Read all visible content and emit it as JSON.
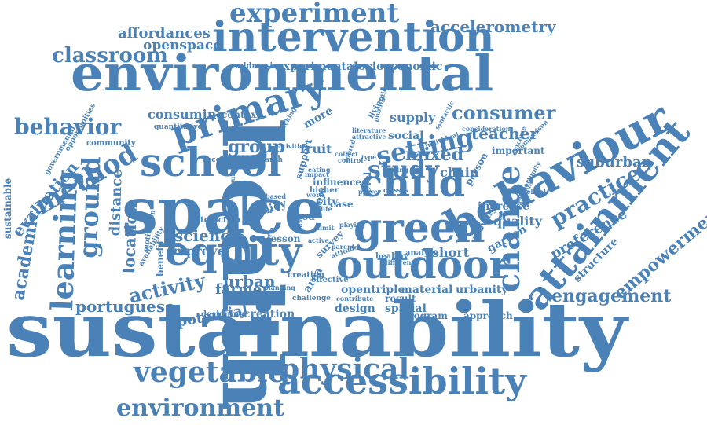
{
  "text_color": "#4a82b8",
  "words": [
    {
      "id": "sustainability",
      "text": "sustainability"
    },
    {
      "id": "environmental",
      "text": "environmental"
    },
    {
      "id": "health",
      "text": "health"
    },
    {
      "id": "space",
      "text": "space"
    },
    {
      "id": "behaviour",
      "text": "behaviour"
    },
    {
      "id": "intervention",
      "text": "intervention"
    },
    {
      "id": "experiment",
      "text": "experiment"
    },
    {
      "id": "school",
      "text": "school"
    },
    {
      "id": "primary",
      "text": "primary"
    },
    {
      "id": "green",
      "text": "green"
    },
    {
      "id": "outdoor",
      "text": "outdoor"
    },
    {
      "id": "attainment",
      "text": "attainment"
    },
    {
      "id": "accessibility",
      "text": "accessibility"
    },
    {
      "id": "vegetable",
      "text": "vegetable"
    },
    {
      "id": "physical",
      "text": "physical"
    },
    {
      "id": "equity",
      "text": "equity"
    },
    {
      "id": "child",
      "text": "child"
    },
    {
      "id": "change",
      "text": "change"
    },
    {
      "id": "learning",
      "text": "learning"
    },
    {
      "id": "method",
      "text": "method"
    },
    {
      "id": "environment",
      "text": "environment"
    },
    {
      "id": "classroom",
      "text": "classroom"
    },
    {
      "id": "behavior",
      "text": "behavior"
    },
    {
      "id": "ground",
      "text": "ground"
    },
    {
      "id": "consumer",
      "text": "consumer"
    },
    {
      "id": "setting",
      "text": "setting"
    },
    {
      "id": "study",
      "text": "study"
    },
    {
      "id": "academic",
      "text": "academic"
    },
    {
      "id": "engagement",
      "text": "engagement"
    },
    {
      "id": "empowerment",
      "text": "empowerment"
    },
    {
      "id": "practice",
      "text": "practice"
    },
    {
      "id": "preference",
      "text": "preference"
    },
    {
      "id": "accelerometry",
      "text": "accelerometry"
    },
    {
      "id": "affordances",
      "text": "affordances"
    },
    {
      "id": "openspace",
      "text": "openspace"
    },
    {
      "id": "evaluation",
      "text": "evaluation"
    },
    {
      "id": "activity",
      "text": "activity"
    },
    {
      "id": "science",
      "text": "science"
    },
    {
      "id": "urban",
      "text": "urban"
    },
    {
      "id": "group",
      "text": "group"
    },
    {
      "id": "mixed",
      "text": "mixed"
    },
    {
      "id": "teacher",
      "text": "teacher"
    },
    {
      "id": "suburban",
      "text": "suburban"
    },
    {
      "id": "portuguese",
      "text": "portuguese"
    },
    {
      "id": "distance",
      "text": "distance"
    },
    {
      "id": "location",
      "text": "location"
    },
    {
      "id": "farmer",
      "text": "farmer"
    },
    {
      "id": "potential",
      "text": "potential"
    },
    {
      "id": "creation",
      "text": "creation"
    },
    {
      "id": "consuming",
      "text": "consuming"
    },
    {
      "id": "supply",
      "text": "supply"
    },
    {
      "id": "social",
      "text": "social"
    },
    {
      "id": "chain",
      "text": "chain"
    },
    {
      "id": "quality",
      "text": "quality"
    },
    {
      "id": "increase",
      "text": "increase"
    },
    {
      "id": "garden",
      "text": "garden"
    },
    {
      "id": "short",
      "text": "short"
    },
    {
      "id": "structure",
      "text": "structure"
    },
    {
      "id": "improve",
      "text": "improve"
    },
    {
      "id": "fruit",
      "text": "fruit"
    },
    {
      "id": "more",
      "text": "more"
    },
    {
      "id": "experimental",
      "text": "experimental"
    },
    {
      "id": "socioeconomic",
      "text": "socioeconomic"
    },
    {
      "id": "addressing",
      "text": "addressing"
    },
    {
      "id": "context",
      "text": "context"
    },
    {
      "id": "sustainable",
      "text": "sustainable"
    },
    {
      "id": "benefit",
      "text": "benefit"
    },
    {
      "id": "design",
      "text": "design"
    },
    {
      "id": "spatial",
      "text": "spatial"
    },
    {
      "id": "program",
      "text": "program"
    },
    {
      "id": "approach",
      "text": "approach"
    },
    {
      "id": "material",
      "text": "material"
    },
    {
      "id": "urbanity",
      "text": "urbanity"
    },
    {
      "id": "opentriple",
      "text": "opentriple"
    },
    {
      "id": "result",
      "text": "result"
    },
    {
      "id": "area",
      "text": "area"
    },
    {
      "id": "city",
      "text": "city"
    },
    {
      "id": "case",
      "text": "case"
    },
    {
      "id": "level",
      "text": "level"
    },
    {
      "id": "influence",
      "text": "influence"
    },
    {
      "id": "moving",
      "text": "moving"
    },
    {
      "id": "person",
      "text": "person"
    },
    {
      "id": "important",
      "text": "important"
    },
    {
      "id": "lesson",
      "text": "lesson"
    },
    {
      "id": "policy",
      "text": "policy"
    },
    {
      "id": "good",
      "text": "good"
    },
    {
      "id": "effective",
      "text": "effective"
    },
    {
      "id": "creating",
      "text": "creating"
    },
    {
      "id": "interaction",
      "text": "interaction"
    },
    {
      "id": "designing",
      "text": "designing"
    },
    {
      "id": "challenge",
      "text": "challenge"
    },
    {
      "id": "community",
      "text": "community"
    },
    {
      "id": "quantitative",
      "text": "quantitative"
    },
    {
      "id": "opportunities",
      "text": "opportunities"
    },
    {
      "id": "governmental",
      "text": "governmental"
    },
    {
      "id": "motivation",
      "text": "motivation"
    },
    {
      "id": "availability",
      "text": "availability"
    },
    {
      "id": "accessible",
      "text": "accessible"
    },
    {
      "id": "research",
      "text": "research"
    },
    {
      "id": "activities",
      "text": "activities"
    },
    {
      "id": "tracking",
      "text": "tracking"
    },
    {
      "id": "attractive",
      "text": "attractive"
    },
    {
      "id": "literature",
      "text": "literature"
    },
    {
      "id": "collect",
      "text": "collect"
    },
    {
      "id": "control",
      "text": "control"
    },
    {
      "id": "support",
      "text": "support"
    },
    {
      "id": "higher",
      "text": "higher"
    },
    {
      "id": "eating",
      "text": "eating"
    },
    {
      "id": "impact",
      "text": "impact"
    },
    {
      "id": "based",
      "text": "based"
    },
    {
      "id": "inequity",
      "text": "inequity"
    },
    {
      "id": "better",
      "text": "better"
    },
    {
      "id": "view",
      "text": "view"
    },
    {
      "id": "analyse",
      "text": "analyse"
    },
    {
      "id": "healthy",
      "text": "healthy"
    },
    {
      "id": "different",
      "text": "different"
    },
    {
      "id": "classes",
      "text": "classes"
    },
    {
      "id": "parent",
      "text": "parent"
    },
    {
      "id": "survey",
      "text": "survey"
    },
    {
      "id": "attitude",
      "text": "attitude"
    },
    {
      "id": "contribute",
      "text": "contribute"
    },
    {
      "id": "syntactic",
      "text": "syntactic"
    },
    {
      "id": "consideration",
      "text": "consideration"
    },
    {
      "id": "comparison",
      "text": "comparison"
    },
    {
      "id": "individual",
      "text": "individual"
    },
    {
      "id": "finding",
      "text": "finding"
    },
    {
      "id": "living",
      "text": "living"
    },
    {
      "id": "publication",
      "text": "publication"
    },
    {
      "id": "opportunity",
      "text": "opportunity"
    },
    {
      "id": "school2",
      "text": "school"
    },
    {
      "id": "focus",
      "text": "focus"
    },
    {
      "id": "perform",
      "text": "perform"
    },
    {
      "id": "playing",
      "text": "playing"
    },
    {
      "id": "planning",
      "text": "planning"
    },
    {
      "id": "inbred",
      "text": "inbred"
    },
    {
      "id": "prove",
      "text": "prove"
    },
    {
      "id": "active",
      "text": "active"
    },
    {
      "id": "work",
      "text": "work"
    },
    {
      "id": "example",
      "text": "example"
    },
    {
      "id": "limit",
      "text": "limit"
    },
    {
      "id": "outcome",
      "text": "outcome"
    },
    {
      "id": "type",
      "text": "type"
    },
    {
      "id": "life",
      "text": "life"
    }
  ]
}
